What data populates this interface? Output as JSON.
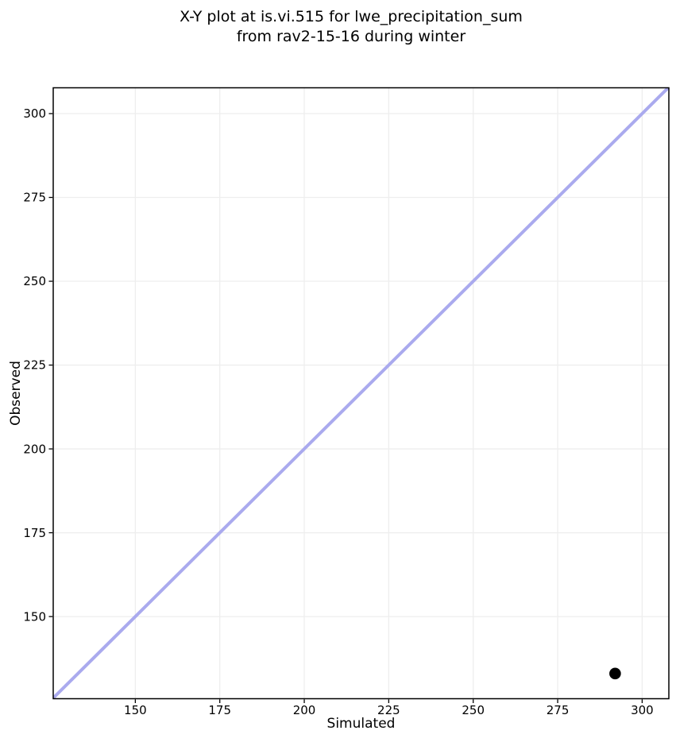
{
  "chart_data": {
    "type": "scatter",
    "title": "X-Y plot at is.vi.515 for lwe_precipitation_sum\nfrom rav2-15-16 during winter",
    "title_lines": [
      "X-Y plot at is.vi.515 for lwe_precipitation_sum",
      "from rav2-15-16 during winter"
    ],
    "xlabel": "Simulated",
    "ylabel": "Observed",
    "xlim": [
      125.7,
      307.9
    ],
    "ylim": [
      125.5,
      307.7
    ],
    "xticks": [
      150,
      175,
      200,
      225,
      250,
      275,
      300
    ],
    "yticks": [
      150,
      175,
      200,
      225,
      250,
      275,
      300
    ],
    "grid": true,
    "legend_position": "none",
    "series": [
      {
        "name": "identity_line",
        "type": "line",
        "color": "#aaaaee",
        "stroke_width": 4,
        "points": [
          {
            "x": 125.7,
            "y": 125.7
          },
          {
            "x": 307.9,
            "y": 307.9
          }
        ]
      },
      {
        "name": "observed_vs_simulated",
        "type": "scatter",
        "marker": "circle",
        "color": "#000000",
        "marker_radius": 7.3,
        "points": [
          {
            "x": 292,
            "y": 133
          }
        ]
      }
    ],
    "style": {
      "grid_color": "#eeeeee",
      "spine_color": "#000000",
      "tick_color": "#000000",
      "text_color": "#000000",
      "background": "#ffffff"
    }
  }
}
